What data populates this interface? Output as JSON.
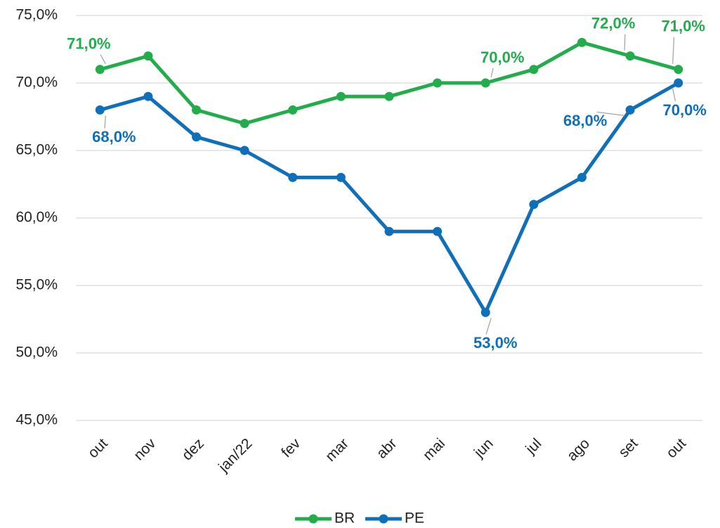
{
  "chart_data": {
    "type": "line",
    "categories": [
      "out",
      "nov",
      "dez",
      "jan/22",
      "fev",
      "mar",
      "abr",
      "mai",
      "jun",
      "jul",
      "ago",
      "set",
      "out"
    ],
    "series": [
      {
        "name": "BR",
        "color": "#22ac4c",
        "values": [
          71,
          72,
          68,
          67,
          68,
          69,
          69,
          70,
          70,
          71,
          73,
          72,
          71
        ],
        "value_labels": [
          "71,0%",
          null,
          null,
          null,
          null,
          null,
          null,
          null,
          "70,0%",
          null,
          null,
          "72,0%",
          "71,0%"
        ]
      },
      {
        "name": "PE",
        "color": "#0f6fb8",
        "values": [
          68,
          69,
          66,
          65,
          63,
          63,
          59,
          59,
          53,
          61,
          63,
          68,
          70
        ],
        "value_labels": [
          "68,0%",
          null,
          null,
          null,
          null,
          null,
          null,
          null,
          "53,0%",
          null,
          null,
          "68,0%",
          "70,0%"
        ]
      }
    ],
    "ylim": [
      45,
      75
    ],
    "yticks": [
      {
        "value": 45,
        "label": "45,0%"
      },
      {
        "value": 50,
        "label": "50,0%"
      },
      {
        "value": 55,
        "label": "55,0%"
      },
      {
        "value": 60,
        "label": "60,0%"
      },
      {
        "value": 65,
        "label": "65,0%"
      },
      {
        "value": 70,
        "label": "70,0%"
      },
      {
        "value": 75,
        "label": "75,0%"
      }
    ],
    "grid": true,
    "legend": "bottom"
  }
}
